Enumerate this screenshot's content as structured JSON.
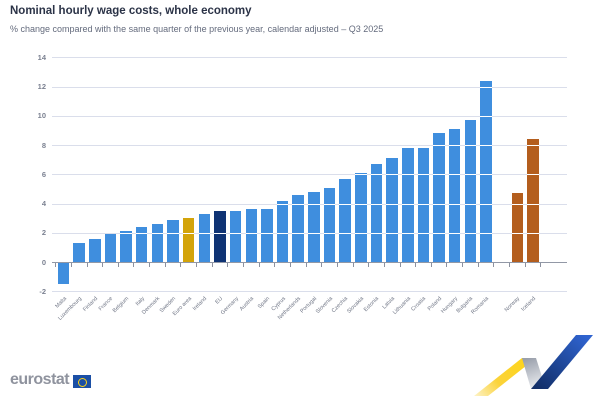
{
  "header": {
    "title": "Nominal hourly wage costs, whole economy",
    "subtitle": "% change compared with the same quarter of the previous year, calendar adjusted – Q3 2025"
  },
  "chart_data": {
    "type": "bar",
    "title": "Nominal hourly wage costs, whole economy",
    "subtitle": "% change compared with the same quarter of the previous year, calendar adjusted – Q3 2025",
    "xlabel": "",
    "ylabel": "%",
    "ylim": [
      -2,
      14
    ],
    "yticks": [
      14,
      12,
      10,
      8,
      6,
      4,
      2,
      0,
      -2
    ],
    "grid": true,
    "legend_position": "none",
    "gap_before_index": 28,
    "bars": [
      {
        "label": "Malta",
        "value": -1.4,
        "group": "country"
      },
      {
        "label": "Luxembourg",
        "value": 1.3,
        "group": "country"
      },
      {
        "label": "Finland",
        "value": 1.6,
        "group": "country"
      },
      {
        "label": "France",
        "value": 1.9,
        "group": "country"
      },
      {
        "label": "Belgium",
        "value": 2.1,
        "group": "country"
      },
      {
        "label": "Italy",
        "value": 2.4,
        "group": "country"
      },
      {
        "label": "Denmark",
        "value": 2.6,
        "group": "country"
      },
      {
        "label": "Sweden",
        "value": 2.9,
        "group": "country"
      },
      {
        "label": "Euro area",
        "value": 3.0,
        "group": "euro_area"
      },
      {
        "label": "Ireland",
        "value": 3.3,
        "group": "country"
      },
      {
        "label": "EU",
        "value": 3.5,
        "group": "eu"
      },
      {
        "label": "Germany",
        "value": 3.5,
        "group": "country"
      },
      {
        "label": "Austria",
        "value": 3.6,
        "group": "country"
      },
      {
        "label": "Spain",
        "value": 3.6,
        "group": "country"
      },
      {
        "label": "Cyprus",
        "value": 4.2,
        "group": "country"
      },
      {
        "label": "Netherlands",
        "value": 4.6,
        "group": "country"
      },
      {
        "label": "Portugal",
        "value": 4.8,
        "group": "country"
      },
      {
        "label": "Slovenia",
        "value": 5.1,
        "group": "country"
      },
      {
        "label": "Czechia",
        "value": 5.7,
        "group": "country"
      },
      {
        "label": "Slovakia",
        "value": 6.1,
        "group": "country"
      },
      {
        "label": "Estonia",
        "value": 6.7,
        "group": "country"
      },
      {
        "label": "Latvia",
        "value": 7.1,
        "group": "country"
      },
      {
        "label": "Lithuania",
        "value": 7.8,
        "group": "country"
      },
      {
        "label": "Croatia",
        "value": 7.8,
        "group": "country"
      },
      {
        "label": "Poland",
        "value": 8.8,
        "group": "country"
      },
      {
        "label": "Hungary",
        "value": 9.1,
        "group": "country"
      },
      {
        "label": "Bulgaria",
        "value": 9.7,
        "group": "country"
      },
      {
        "label": "Romania",
        "value": 12.4,
        "group": "country"
      },
      {
        "label": "Norway",
        "value": 4.7,
        "group": "non_eu"
      },
      {
        "label": "Iceland",
        "value": 8.4,
        "group": "non_eu"
      }
    ],
    "colors": {
      "country": "#3f8ede",
      "euro_area": "#d3a40a",
      "eu": "#0f3374",
      "non_eu": "#b45e1e",
      "gridline": "#dadeeb",
      "axis": "#9298a6"
    }
  },
  "footer": {
    "logo_text": "eurostat"
  }
}
